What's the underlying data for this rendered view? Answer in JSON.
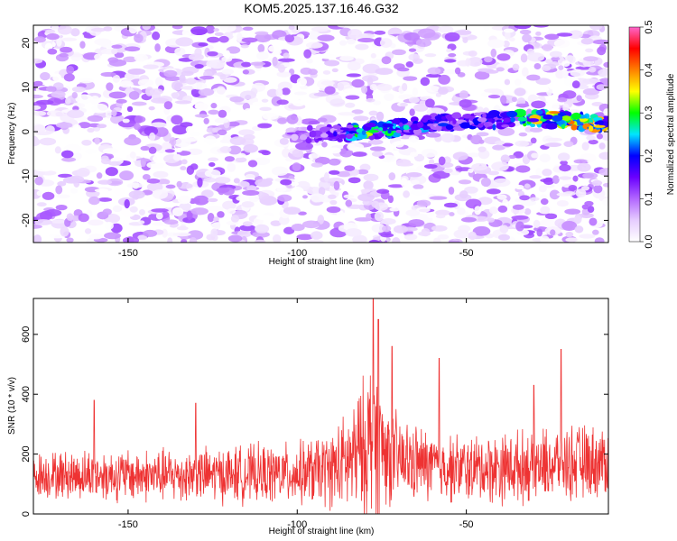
{
  "figure": {
    "title": "KOM5.2025.137.16.46.G32"
  },
  "chart_data": [
    {
      "type": "heatmap",
      "title": "KOM5.2025.137.16.46.G32",
      "xlabel": "Height of straight line (km)",
      "ylabel": "Frequency (Hz)",
      "xlim": [
        -178,
        -8
      ],
      "ylim": [
        -25,
        24
      ],
      "xticks": [
        -150,
        -100,
        -50
      ],
      "yticks": [
        -20,
        -10,
        0,
        10,
        20
      ],
      "colorbar": {
        "label": "Normalized spectral amplitude",
        "range": [
          0.0,
          0.5
        ],
        "ticks": [
          0.0,
          0.1,
          0.2,
          0.3,
          0.4,
          0.5
        ],
        "colors": [
          "#ffffff",
          "#e6ccff",
          "#b266ff",
          "#6a00ff",
          "#0000ff",
          "#00e5ff",
          "#00ff00",
          "#ffff00",
          "#ff8000",
          "#ff0000",
          "#ff66cc"
        ]
      },
      "ridge": {
        "start_x": -102,
        "x": [
          -100,
          -90,
          -80,
          -70,
          -60,
          -50,
          -40,
          -30,
          -20,
          -10
        ],
        "y": [
          -0.8,
          -0.5,
          0.1,
          0.9,
          2.0,
          2.3,
          2.7,
          3.0,
          2.6,
          1.8
        ],
        "peak_amplitude": [
          0.12,
          0.16,
          0.35,
          0.28,
          0.22,
          0.2,
          0.22,
          0.38,
          0.42,
          0.4
        ]
      },
      "noise_background": "purple speckle, amplitude 0.0-0.12"
    },
    {
      "type": "line",
      "xlabel": "Height of straight line (km)",
      "ylabel": "SNR (10 * v/v)",
      "xlim": [
        -178,
        -8
      ],
      "ylim": [
        0,
        720
      ],
      "xticks": [
        -150,
        -100,
        -50
      ],
      "yticks": [
        0,
        200,
        400,
        600
      ],
      "series": [
        {
          "color": "#ee3333",
          "envelope": {
            "x": [
              -178,
              -160,
              -140,
              -120,
              -100,
              -90,
              -85,
              -80,
              -78,
              -76,
              -74,
              -70,
              -65,
              -60,
              -50,
              -40,
              -30,
              -20,
              -10,
              -8
            ],
            "baseline": [
              130,
              130,
              128,
              132,
              135,
              150,
              170,
              220,
              260,
              240,
              210,
              180,
              170,
              160,
              150,
              155,
              160,
              170,
              175,
              175
            ],
            "amplitude": [
              90,
              100,
              105,
              110,
              120,
              150,
              200,
              280,
              330,
              300,
              220,
              170,
              150,
              140,
              130,
              140,
              140,
              150,
              140,
              140
            ]
          },
          "peaks": [
            {
              "x": -77.5,
              "y": 720
            },
            {
              "x": -76,
              "y": 650
            },
            {
              "x": -72,
              "y": 560
            },
            {
              "x": -58,
              "y": 520
            },
            {
              "x": -22,
              "y": 550
            },
            {
              "x": -30,
              "y": 430
            },
            {
              "x": -160,
              "y": 380
            },
            {
              "x": -130,
              "y": 370
            }
          ]
        }
      ]
    }
  ]
}
